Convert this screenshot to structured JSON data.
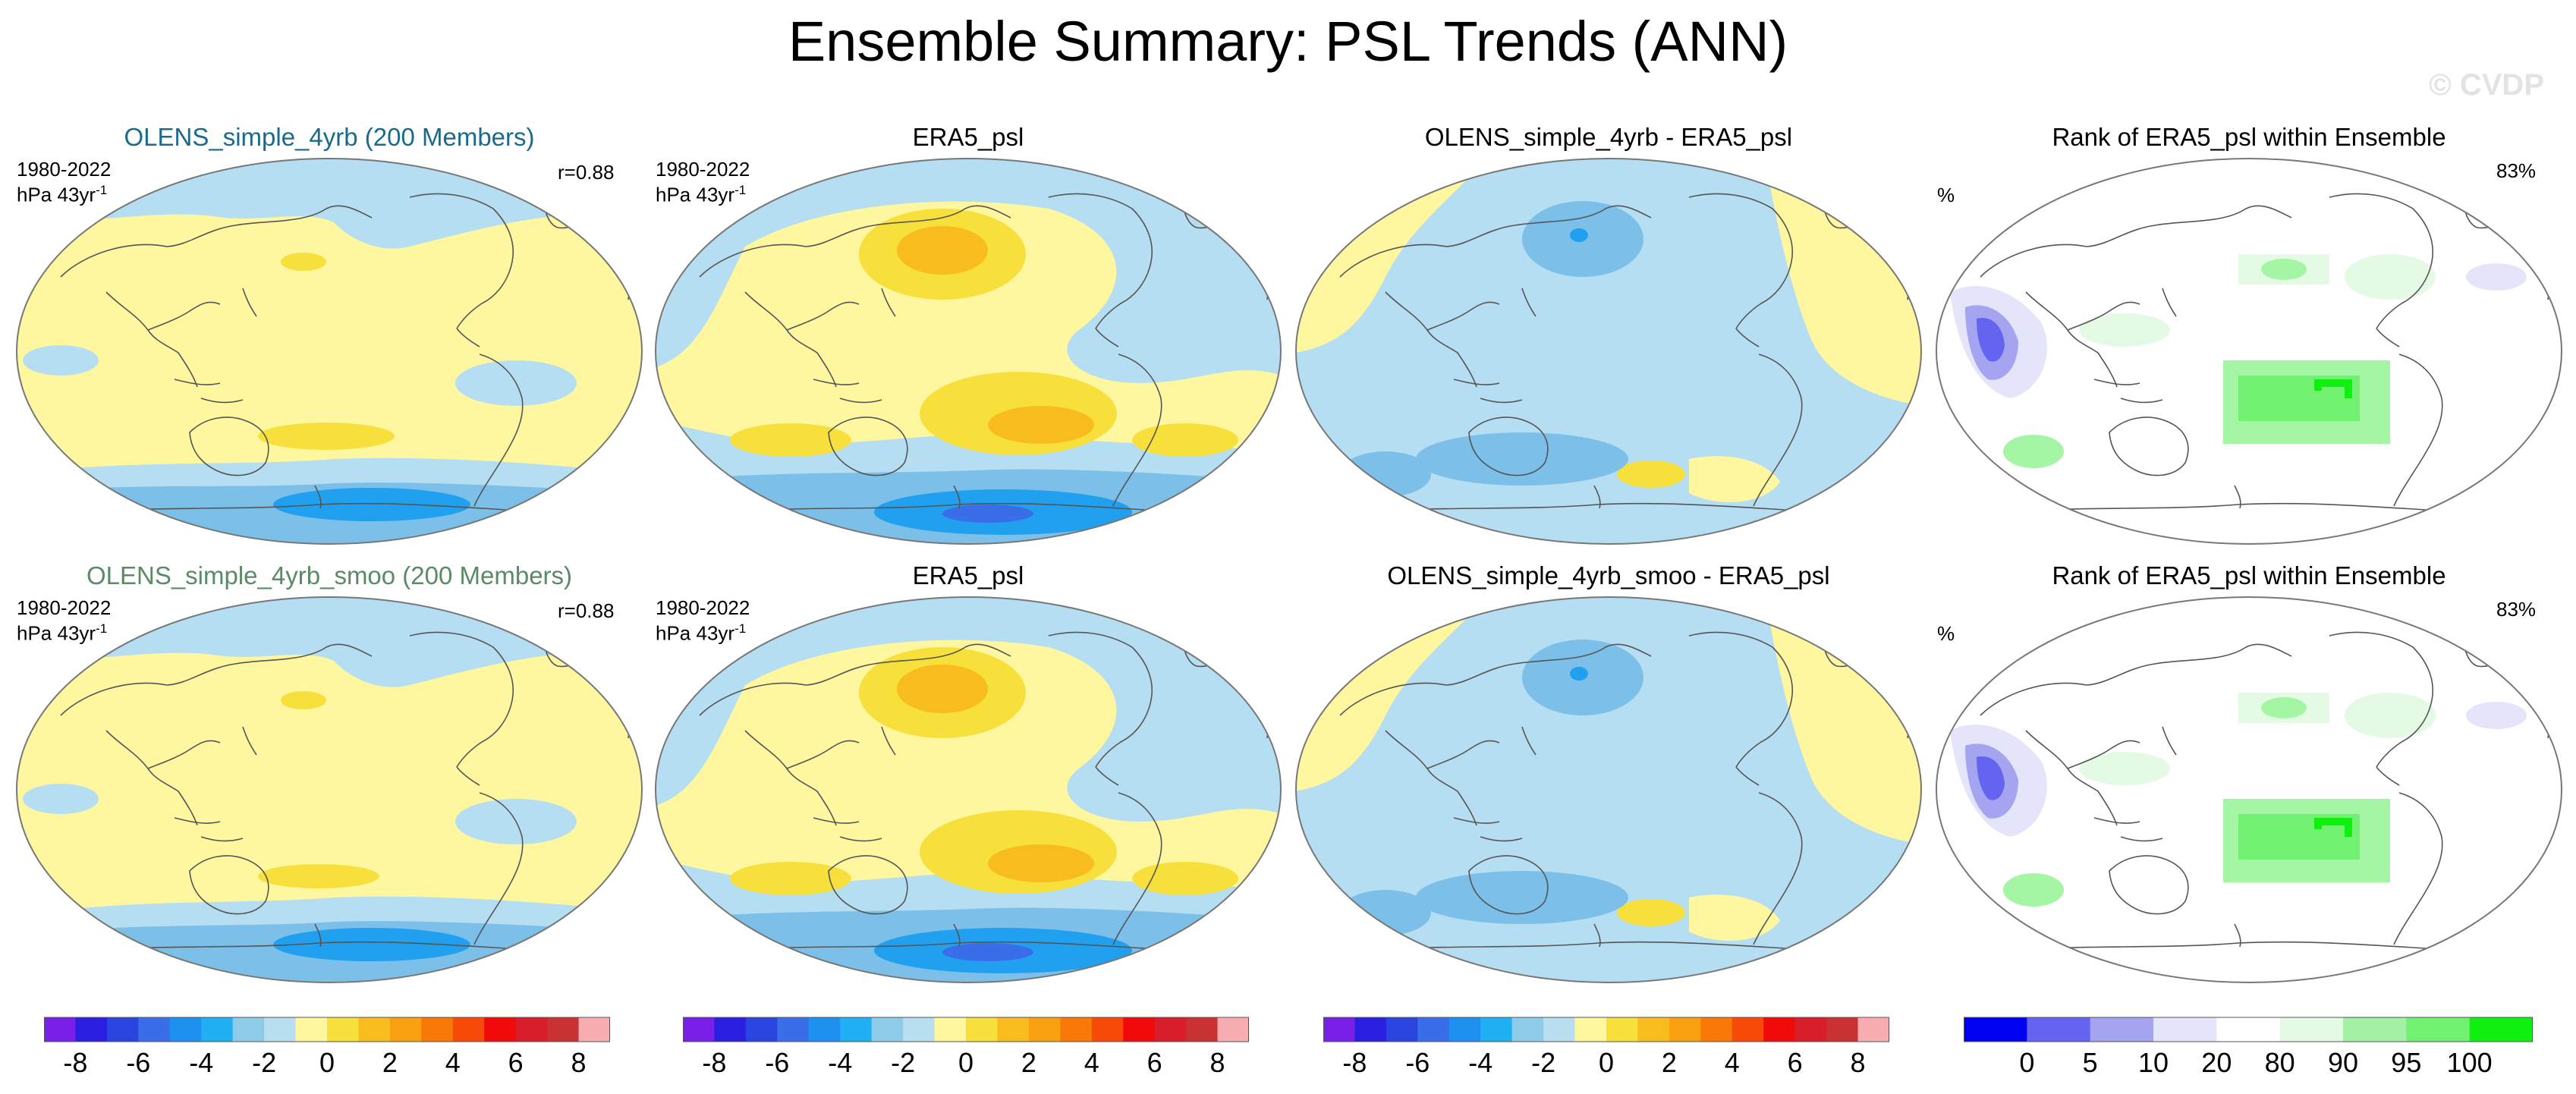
{
  "title": "Ensemble Summary: PSL Trends (ANN)",
  "watermark": "© CVDP",
  "rows": [
    {
      "model_title": "OLENS_simple_4yrb (200 Members)",
      "period": "1980-2022",
      "units": "hPa 43yr",
      "units_exp": "-1",
      "corr": "r=0.88",
      "obs_title": "ERA5_psl",
      "diff_title": "OLENS_simple_4yrb - ERA5_psl",
      "rank_title": "Rank of ERA5_psl within Ensemble",
      "rank_units": "%",
      "rank_pct": "83%"
    },
    {
      "model_title": "OLENS_simple_4yrb_smoo (200 Members)",
      "period": "1980-2022",
      "units": "hPa 43yr",
      "units_exp": "-1",
      "corr": "r=0.88",
      "obs_title": "ERA5_psl",
      "diff_title": "OLENS_simple_4yrb_smoo - ERA5_psl",
      "rank_title": "Rank of ERA5_psl within Ensemble",
      "rank_units": "%",
      "rank_pct": "83%"
    }
  ],
  "trend_colorbar": {
    "colors": [
      "#7a1fe8",
      "#2a1fe0",
      "#2a44e0",
      "#3a6ee8",
      "#1e90f0",
      "#21b0f4",
      "#8ecbe8",
      "#b8def0",
      "#fff7a0",
      "#f8e03c",
      "#f8bc1e",
      "#f8a010",
      "#f87808",
      "#f84a08",
      "#f00a0a",
      "#d81e2a",
      "#c83232",
      "#f8aeb0"
    ],
    "ticks": [
      "-8",
      "-6",
      "-4",
      "-2",
      "0",
      "2",
      "4",
      "6",
      "8"
    ]
  },
  "rank_colorbar": {
    "colors": [
      "#0000f0",
      "#6464f0",
      "#a4a4f0",
      "#e4e4fa",
      "#ffffff",
      "#e4fae4",
      "#a4f0a4",
      "#72f072",
      "#10f010"
    ],
    "ticks": [
      "0",
      "5",
      "10",
      "20",
      "80",
      "90",
      "95",
      "100"
    ]
  },
  "colors": {
    "ocean_blue": "#b6def2",
    "light_yellow": "#fff7a0",
    "mid_blue": "#7cc0ea",
    "deep_blue": "#21a0f0",
    "orange": "#f8bc1e",
    "dark_orange": "#f8a010",
    "rank_green": "#a4f5a4",
    "rank_bright_green": "#30f030",
    "rank_blue": "#6464f0"
  }
}
